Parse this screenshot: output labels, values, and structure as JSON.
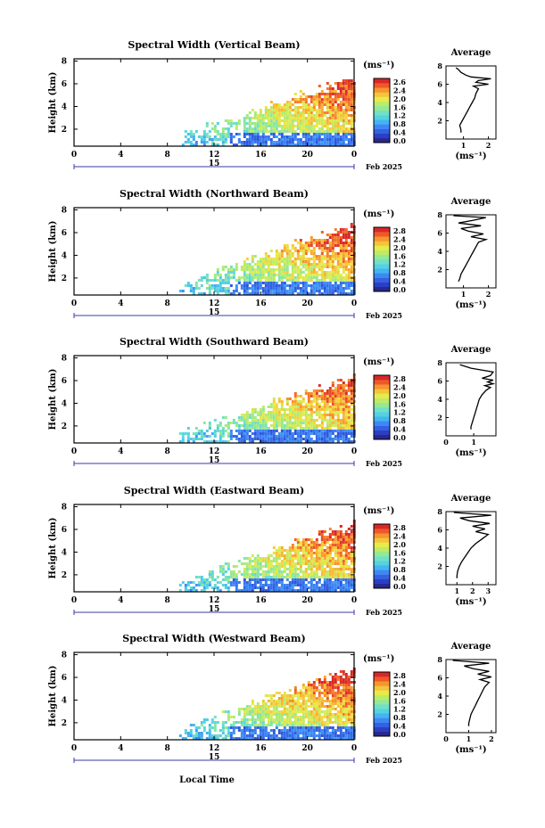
{
  "figure": {
    "xlabel": "Local Time",
    "date_day": "15",
    "date_suffix": "Feb 2025",
    "unit_label": "(ms⁻¹)",
    "avg_title": "Average",
    "avg_xlabel": "(ms⁻¹)",
    "ylabel": "Height (km)"
  },
  "chart_data": [
    {
      "type": "heatmap",
      "title": "Spectral Width (Vertical Beam)",
      "ylabel": "Height (km)",
      "x_ticks": [
        "0",
        "4",
        "8",
        "12",
        "16",
        "20",
        "0"
      ],
      "x_range_hours": [
        0,
        24
      ],
      "y_ticks": [
        "2",
        "4",
        "6",
        "8"
      ],
      "y_range_km": [
        0.5,
        8.2
      ],
      "colorbar": {
        "unit": "(ms⁻¹)",
        "ticks": [
          "2.6",
          "2.4",
          "2.0",
          "1.6",
          "1.2",
          "0.8",
          "0.4",
          "0.0"
        ],
        "range": [
          0.0,
          2.8
        ]
      },
      "data_extent": {
        "start_hour": 9,
        "end_hour": 24,
        "max_height_km": 6.6
      },
      "profile": {
        "title": "Average",
        "xlabel": "(ms⁻¹)",
        "x_ticks": [
          "1",
          "2"
        ],
        "x_range": [
          0.3,
          2.3
        ],
        "height_km": [
          0.7,
          1.0,
          1.5,
          2.0,
          2.5,
          3.0,
          3.5,
          4.0,
          4.5,
          5.0,
          5.5,
          5.8,
          6.0,
          6.2,
          6.4,
          6.6,
          6.8,
          7.0,
          7.3,
          7.6,
          7.8
        ],
        "width_ms": [
          0.9,
          0.9,
          0.85,
          0.95,
          1.05,
          1.15,
          1.25,
          1.35,
          1.45,
          1.5,
          1.6,
          1.4,
          2.0,
          1.5,
          1.6,
          2.1,
          1.3,
          1.1,
          0.9,
          0.8,
          0.7
        ]
      }
    },
    {
      "type": "heatmap",
      "title": "Spectral Width (Northward Beam)",
      "ylabel": "Height (km)",
      "x_ticks": [
        "0",
        "4",
        "8",
        "12",
        "16",
        "20",
        "0"
      ],
      "x_range_hours": [
        0,
        24
      ],
      "y_ticks": [
        "2",
        "4",
        "6",
        "8"
      ],
      "y_range_km": [
        0.5,
        8.2
      ],
      "colorbar": {
        "unit": "(ms⁻¹)",
        "ticks": [
          "2.8",
          "2.4",
          "2.0",
          "1.6",
          "1.2",
          "0.8",
          "0.4",
          "0.0"
        ],
        "range": [
          0.0,
          2.8
        ]
      },
      "data_extent": {
        "start_hour": 9,
        "end_hour": 24,
        "max_height_km": 6.8
      },
      "profile": {
        "title": "Average",
        "xlabel": "(ms⁻¹)",
        "x_ticks": [
          "1",
          "2"
        ],
        "x_range": [
          0.3,
          2.3
        ],
        "height_km": [
          0.7,
          1.0,
          1.5,
          2.0,
          2.5,
          3.0,
          3.5,
          4.0,
          4.5,
          5.0,
          5.3,
          5.6,
          5.9,
          6.2,
          6.5,
          6.8,
          7.1,
          7.4,
          7.7,
          7.9
        ],
        "width_ms": [
          0.8,
          0.85,
          0.9,
          1.0,
          1.1,
          1.2,
          1.3,
          1.4,
          1.5,
          1.6,
          1.9,
          1.3,
          1.8,
          1.2,
          0.9,
          1.7,
          0.8,
          1.4,
          1.9,
          0.6
        ]
      }
    },
    {
      "type": "heatmap",
      "title": "Spectral Width (Southward Beam)",
      "ylabel": "Height (km)",
      "x_ticks": [
        "0",
        "4",
        "8",
        "12",
        "16",
        "20",
        "0"
      ],
      "x_range_hours": [
        0,
        24
      ],
      "y_ticks": [
        "2",
        "4",
        "6",
        "8"
      ],
      "y_range_km": [
        0.5,
        8.2
      ],
      "colorbar": {
        "unit": "(ms⁻¹)",
        "ticks": [
          "2.8",
          "2.4",
          "2.0",
          "1.6",
          "1.2",
          "0.8",
          "0.4",
          "0.0"
        ],
        "range": [
          0.0,
          2.8
        ]
      },
      "data_extent": {
        "start_hour": 9,
        "end_hour": 24,
        "max_height_km": 6.3
      },
      "profile": {
        "title": "Average",
        "xlabel": "(ms⁻¹)",
        "x_ticks": [
          "0",
          "1"
        ],
        "x_range": [
          0.0,
          1.8
        ],
        "height_km": [
          0.7,
          1.0,
          1.5,
          2.0,
          2.5,
          3.0,
          3.5,
          4.0,
          4.5,
          5.0,
          5.3,
          5.5,
          5.7,
          5.9,
          6.1,
          6.3,
          6.6,
          7.0,
          7.4,
          7.8
        ],
        "width_ms": [
          0.9,
          0.9,
          0.95,
          1.0,
          1.05,
          1.1,
          1.15,
          1.2,
          1.3,
          1.45,
          1.6,
          1.4,
          1.7,
          1.5,
          1.7,
          1.3,
          1.6,
          1.7,
          0.9,
          0.5
        ]
      }
    },
    {
      "type": "heatmap",
      "title": "Spectral Width (Eastward Beam)",
      "ylabel": "Height (km)",
      "x_ticks": [
        "0",
        "4",
        "8",
        "12",
        "16",
        "20",
        "0"
      ],
      "x_range_hours": [
        0,
        24
      ],
      "y_ticks": [
        "2",
        "4",
        "6",
        "8"
      ],
      "y_range_km": [
        0.5,
        8.2
      ],
      "colorbar": {
        "unit": "(ms⁻¹)",
        "ticks": [
          "2.8",
          "2.4",
          "2.0",
          "1.6",
          "1.2",
          "0.8",
          "0.4",
          "0.0"
        ],
        "range": [
          0.0,
          2.8
        ]
      },
      "data_extent": {
        "start_hour": 9,
        "end_hour": 24,
        "max_height_km": 6.6
      },
      "profile": {
        "title": "Average",
        "xlabel": "(ms⁻¹)",
        "x_ticks": [
          "1",
          "2",
          "3"
        ],
        "x_range": [
          0.3,
          3.5
        ],
        "height_km": [
          0.7,
          1.0,
          1.5,
          2.0,
          2.5,
          3.0,
          3.5,
          4.0,
          4.5,
          5.0,
          5.5,
          5.8,
          6.1,
          6.4,
          6.7,
          7.0,
          7.3,
          7.6,
          7.9
        ],
        "width_ms": [
          1.0,
          1.0,
          1.05,
          1.15,
          1.3,
          1.5,
          1.7,
          1.9,
          2.2,
          2.6,
          3.0,
          2.2,
          2.8,
          2.0,
          3.1,
          1.8,
          1.2,
          3.2,
          0.8
        ]
      }
    },
    {
      "type": "heatmap",
      "title": "Spectral Width (Westward Beam)",
      "ylabel": "Height (km)",
      "x_ticks": [
        "0",
        "4",
        "8",
        "12",
        "16",
        "20",
        "0"
      ],
      "x_range_hours": [
        0,
        24
      ],
      "y_ticks": [
        "2",
        "4",
        "6",
        "8"
      ],
      "y_range_km": [
        0.5,
        8.2
      ],
      "colorbar": {
        "unit": "(ms⁻¹)",
        "ticks": [
          "2.8",
          "2.4",
          "2.0",
          "1.6",
          "1.2",
          "0.8",
          "0.4",
          "0.0"
        ],
        "range": [
          0.0,
          2.8
        ]
      },
      "data_extent": {
        "start_hour": 9,
        "end_hour": 24,
        "max_height_km": 6.8
      },
      "profile": {
        "title": "Average",
        "xlabel": "(ms⁻¹)",
        "x_ticks": [
          "0",
          "1",
          "2"
        ],
        "x_range": [
          0.0,
          2.2
        ],
        "height_km": [
          0.7,
          1.0,
          1.5,
          2.0,
          2.5,
          3.0,
          3.5,
          4.0,
          4.5,
          5.0,
          5.5,
          5.8,
          6.1,
          6.4,
          6.7,
          7.0,
          7.3,
          7.6,
          7.9
        ],
        "width_ms": [
          1.0,
          1.0,
          1.05,
          1.1,
          1.2,
          1.3,
          1.4,
          1.5,
          1.6,
          1.7,
          1.9,
          1.5,
          2.0,
          1.4,
          1.9,
          1.2,
          0.8,
          1.9,
          0.3
        ]
      }
    }
  ]
}
